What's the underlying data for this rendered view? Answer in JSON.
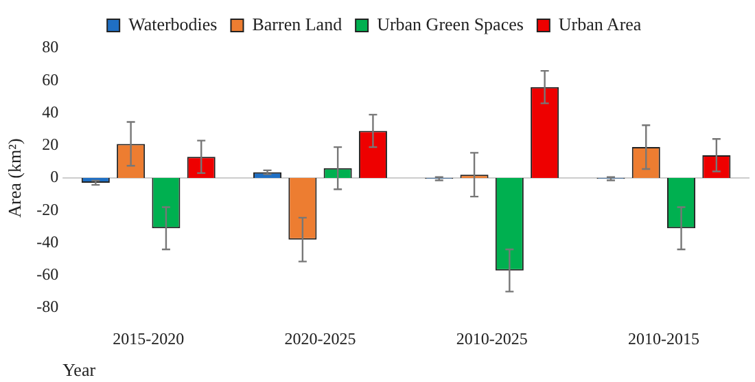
{
  "chart_data": {
    "type": "bar",
    "xlabel": "Year",
    "ylabel": "Area (km²)",
    "categories": [
      "2015-2020",
      "2020-2025",
      "2010-2025",
      "2010-2015"
    ],
    "series": [
      {
        "name": "Waterbodies",
        "color": "#1f6fc4",
        "values": [
          -3,
          3.5,
          -0.5,
          -0.5
        ],
        "errors": [
          1.3,
          1.2,
          1,
          1
        ]
      },
      {
        "name": "Barren Land",
        "color": "#ed7d31",
        "values": [
          21,
          -38,
          2,
          19
        ],
        "errors": [
          13.5,
          13.5,
          13.5,
          13.5
        ]
      },
      {
        "name": "Urban Green Spaces",
        "color": "#00b050",
        "values": [
          -31,
          6,
          -57,
          -31
        ],
        "errors": [
          13,
          13,
          13,
          13
        ]
      },
      {
        "name": "Urban Area",
        "color": "#ee0000",
        "values": [
          13,
          29,
          56,
          14
        ],
        "errors": [
          10,
          10,
          10,
          10
        ]
      }
    ],
    "ylim": [
      -80,
      80
    ],
    "yticks": [
      -80,
      -60,
      -40,
      -20,
      0,
      20,
      40,
      60,
      80
    ],
    "legend": "top",
    "ref_lines": [
      {
        "axis": "y",
        "value": 0,
        "color": "#cccccc"
      }
    ]
  }
}
